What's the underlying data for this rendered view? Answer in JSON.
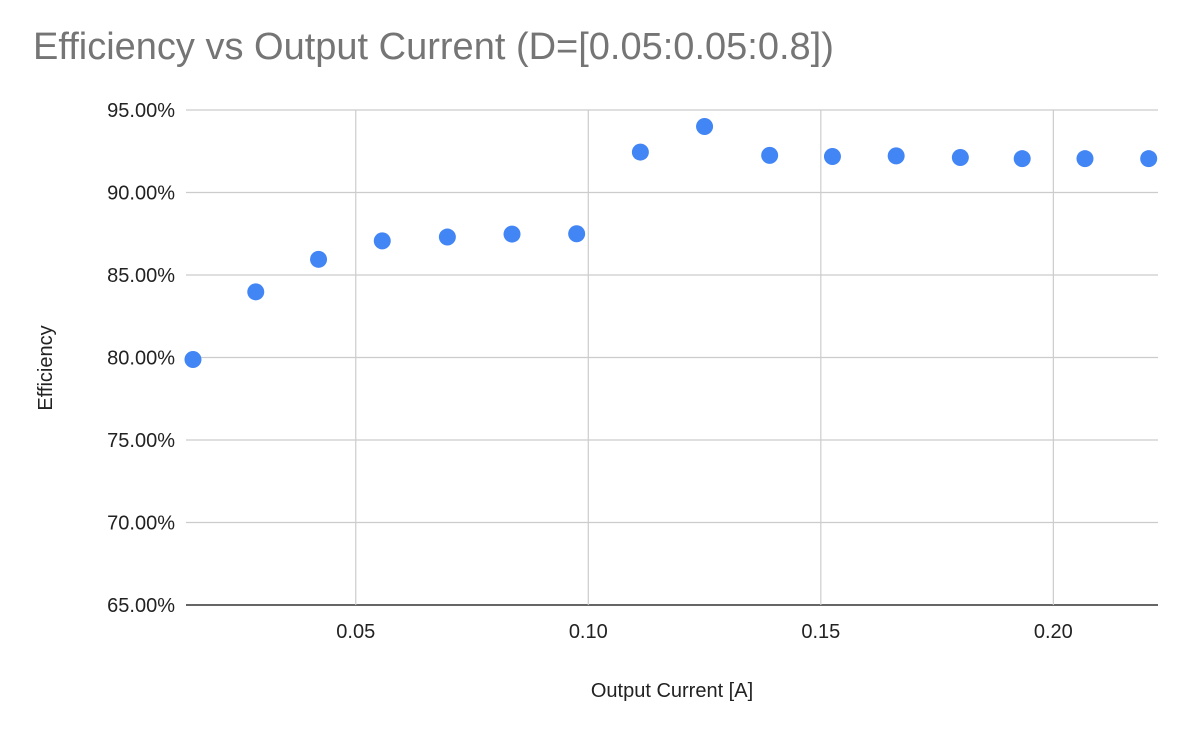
{
  "chart_data": {
    "type": "scatter",
    "title": "Efficiency vs Output Current (D=[0.05:0.05:0.8])",
    "xlabel": "Output Current [A]",
    "ylabel": "Efficiency",
    "xlim": [
      0.0135,
      0.2225
    ],
    "ylim": [
      0.65,
      0.95
    ],
    "xticks": [
      0.05,
      0.1,
      0.15,
      0.2
    ],
    "xtick_labels": [
      "0.05",
      "0.10",
      "0.15",
      "0.20"
    ],
    "yticks": [
      0.65,
      0.7,
      0.75,
      0.8,
      0.85,
      0.9,
      0.95
    ],
    "ytick_labels": [
      "65.00%",
      "70.00%",
      "75.00%",
      "80.00%",
      "85.00%",
      "90.00%",
      "95.00%"
    ],
    "grid": true,
    "legend": "none",
    "series": [
      {
        "color": "#4285f4",
        "points": [
          {
            "x": 0.015,
            "y": 0.7988
          },
          {
            "x": 0.0285,
            "y": 0.8398
          },
          {
            "x": 0.042,
            "y": 0.8595
          },
          {
            "x": 0.0557,
            "y": 0.8707
          },
          {
            "x": 0.0697,
            "y": 0.873
          },
          {
            "x": 0.0836,
            "y": 0.8748
          },
          {
            "x": 0.0975,
            "y": 0.875
          },
          {
            "x": 0.1112,
            "y": 0.9245
          },
          {
            "x": 0.125,
            "y": 0.94
          },
          {
            "x": 0.139,
            "y": 0.9225
          },
          {
            "x": 0.1525,
            "y": 0.9218
          },
          {
            "x": 0.1662,
            "y": 0.9222
          },
          {
            "x": 0.18,
            "y": 0.9212
          },
          {
            "x": 0.1933,
            "y": 0.9205
          },
          {
            "x": 0.2068,
            "y": 0.9205
          },
          {
            "x": 0.2205,
            "y": 0.9205
          }
        ]
      }
    ]
  }
}
